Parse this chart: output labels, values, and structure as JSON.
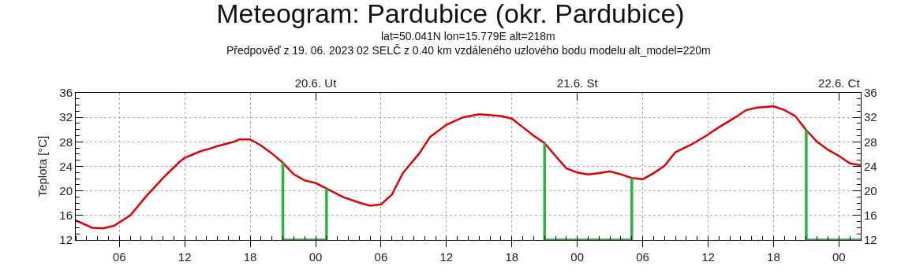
{
  "chart_data": {
    "type": "line",
    "title": "Meteogram: Pardubice (okr. Pardubice)",
    "subtitle": "lat=50.041N lon=15.779E alt=218m\nPředpověď z 19. 06. 2023 02 SELČ z 0.40 km vzdáleného uzlového bodu modelu alt_model=220m",
    "ylabel": "Teplota [°C]",
    "series": [
      {
        "color": "#dd0000",
        "x": [
          "2023-06-19T02:00",
          "2023-06-19T03:30",
          "2023-06-19T04:30",
          "2023-06-19T05:30",
          "2023-06-19T07:00",
          "2023-06-19T08:30",
          "2023-06-19T10:00",
          "2023-06-19T11:30",
          "2023-06-19T12:00",
          "2023-06-19T13:30",
          "2023-06-19T14:30",
          "2023-06-19T15:00",
          "2023-06-19T16:30",
          "2023-06-19T17:00",
          "2023-06-19T18:00",
          "2023-06-19T19:00",
          "2023-06-19T20:00",
          "2023-06-19T21:00",
          "2023-06-19T22:00",
          "2023-06-19T23:00",
          "2023-06-20T00:00",
          "2023-06-20T01:00",
          "2023-06-20T02:30",
          "2023-06-20T04:00",
          "2023-06-20T05:00",
          "2023-06-20T06:00",
          "2023-06-20T07:00",
          "2023-06-20T08:00",
          "2023-06-20T09:30",
          "2023-06-20T10:30",
          "2023-06-20T12:00",
          "2023-06-20T13:30",
          "2023-06-20T15:00",
          "2023-06-20T17:00",
          "2023-06-20T18:00",
          "2023-06-20T19:00",
          "2023-06-20T20:00",
          "2023-06-20T21:00",
          "2023-06-20T22:00",
          "2023-06-20T23:00",
          "2023-06-21T00:00",
          "2023-06-21T01:00",
          "2023-06-21T02:00",
          "2023-06-21T03:00",
          "2023-06-21T04:00",
          "2023-06-21T05:00",
          "2023-06-21T06:00",
          "2023-06-21T07:00",
          "2023-06-21T08:00",
          "2023-06-21T09:00",
          "2023-06-21T10:30",
          "2023-06-21T12:00",
          "2023-06-21T13:00",
          "2023-06-21T14:30",
          "2023-06-21T15:30",
          "2023-06-21T16:30",
          "2023-06-21T18:00",
          "2023-06-21T19:00",
          "2023-06-21T20:00",
          "2023-06-21T21:00",
          "2023-06-21T22:00",
          "2023-06-21T23:00",
          "2023-06-22T00:00",
          "2023-06-22T01:00",
          "2023-06-22T02:00"
        ],
        "values": [
          15.2,
          14.0,
          13.9,
          14.3,
          16.0,
          19.2,
          22.1,
          24.7,
          25.4,
          26.5,
          27.0,
          27.3,
          28.0,
          28.4,
          28.4,
          27.4,
          26.1,
          24.6,
          22.7,
          21.7,
          21.3,
          20.4,
          19.0,
          18.1,
          17.6,
          17.8,
          19.4,
          22.9,
          26.1,
          28.8,
          30.8,
          32.0,
          32.5,
          32.2,
          31.8,
          30.4,
          29.0,
          27.8,
          25.7,
          23.7,
          23.0,
          22.7,
          22.9,
          23.2,
          22.7,
          22.1,
          21.9,
          22.9,
          24.1,
          26.3,
          27.6,
          29.2,
          30.4,
          32.0,
          33.2,
          33.6,
          33.8,
          33.2,
          32.2,
          29.9,
          28.0,
          26.7,
          25.7,
          24.5,
          24.2
        ]
      },
      {
        "color": "#2db24a",
        "x": [
          "2023-06-19T21:00",
          "2023-06-19T21:00",
          "2023-06-20T01:00",
          "2023-06-20T01:00"
        ],
        "values": [
          24.6,
          12,
          12,
          20.4
        ]
      },
      {
        "color": "#2db24a",
        "x": [
          "2023-06-20T21:00",
          "2023-06-20T21:00",
          "2023-06-21T05:00",
          "2023-06-21T05:00"
        ],
        "values": [
          27.8,
          12,
          12,
          22.1
        ]
      },
      {
        "color": "#2db24a",
        "x": [
          "2023-06-21T21:00",
          "2023-06-21T21:00",
          "2023-06-22T02:00"
        ],
        "values": [
          29.9,
          12,
          12
        ]
      }
    ],
    "xlim": [
      "2023-06-19T02:00",
      "2023-06-22T02:00"
    ],
    "xticks": [
      {
        "value": "2023-06-19T06:00",
        "label": "06"
      },
      {
        "value": "2023-06-19T12:00",
        "label": "12"
      },
      {
        "value": "2023-06-19T18:00",
        "label": "18"
      },
      {
        "value": "2023-06-20T00:00",
        "label": "00"
      },
      {
        "value": "2023-06-20T06:00",
        "label": "06"
      },
      {
        "value": "2023-06-20T12:00",
        "label": "12"
      },
      {
        "value": "2023-06-20T18:00",
        "label": "18"
      },
      {
        "value": "2023-06-21T00:00",
        "label": "00"
      },
      {
        "value": "2023-06-21T06:00",
        "label": "06"
      },
      {
        "value": "2023-06-21T12:00",
        "label": "12"
      },
      {
        "value": "2023-06-21T18:00",
        "label": "18"
      },
      {
        "value": "2023-06-22T00:00",
        "label": "00"
      }
    ],
    "x2lim": [
      "2023-06-19T02:00",
      "2023-06-22T02:00"
    ],
    "x2ticks": [
      {
        "value": "2023-06-20T00:00",
        "label": "20.6. Ut"
      },
      {
        "value": "2023-06-21T00:00",
        "label": "21.6. St"
      },
      {
        "value": "2023-06-22T00:00",
        "label": "22.6. Ct"
      }
    ],
    "ylim": [
      12,
      36
    ],
    "yticks": [
      12,
      16,
      20,
      24,
      28,
      32,
      36
    ],
    "y2lim": [
      12,
      36
    ],
    "y2ticks": [
      12,
      16,
      20,
      24,
      28,
      32,
      36
    ],
    "grid": true,
    "marker": "none",
    "line_style": "solid"
  }
}
